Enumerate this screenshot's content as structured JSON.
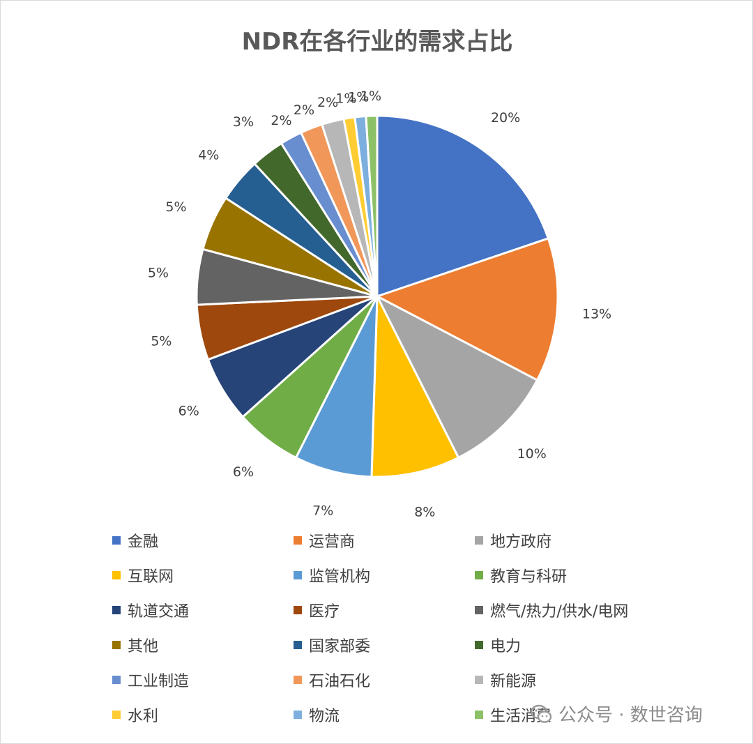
{
  "chart_data": {
    "type": "pie",
    "title": "NDR在各行业的需求占比",
    "legend_position": "bottom",
    "slices": [
      {
        "name": "金融",
        "value": 20,
        "label": "20%",
        "color": "#4472C4"
      },
      {
        "name": "运营商",
        "value": 13,
        "label": "13%",
        "color": "#ED7D31"
      },
      {
        "name": "地方政府",
        "value": 10,
        "label": "10%",
        "color": "#A5A5A5"
      },
      {
        "name": "互联网",
        "value": 8,
        "label": "8%",
        "color": "#FFC000"
      },
      {
        "name": "监管机构",
        "value": 7,
        "label": "7%",
        "color": "#5B9BD5"
      },
      {
        "name": "教育与科研",
        "value": 6,
        "label": "6%",
        "color": "#70AD47"
      },
      {
        "name": "轨道交通",
        "value": 6,
        "label": "6%",
        "color": "#264478"
      },
      {
        "name": "医疗",
        "value": 5,
        "label": "5%",
        "color": "#9E480E"
      },
      {
        "name": "燃气/热力/供水/电网",
        "value": 5,
        "label": "5%",
        "color": "#636363"
      },
      {
        "name": "其他",
        "value": 5,
        "label": "5%",
        "color": "#997300"
      },
      {
        "name": "国家部委",
        "value": 4,
        "label": "4%",
        "color": "#255E91"
      },
      {
        "name": "电力",
        "value": 3,
        "label": "3%",
        "color": "#43682B"
      },
      {
        "name": "工业制造",
        "value": 2,
        "label": "2%",
        "color": "#698ED0"
      },
      {
        "name": "石油石化",
        "value": 2,
        "label": "2%",
        "color": "#F1975A"
      },
      {
        "name": "新能源",
        "value": 2,
        "label": "2%",
        "color": "#B7B7B7"
      },
      {
        "name": "水利",
        "value": 1,
        "label": "1%",
        "color": "#FFCD33"
      },
      {
        "name": "物流",
        "value": 1,
        "label": "1%",
        "color": "#7CAFDD"
      },
      {
        "name": "生活消费",
        "value": 1,
        "label": "1%",
        "color": "#8CC168"
      }
    ]
  },
  "watermark": {
    "text": "公众号 · 数世咨询",
    "icon": "wechat-icon"
  }
}
